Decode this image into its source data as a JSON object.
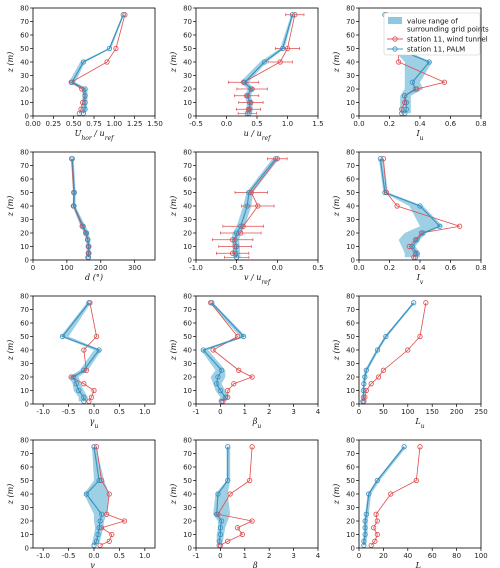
{
  "colors": {
    "palm": "#3a8fbf",
    "wind_tunnel": "#e04b4b",
    "band": "#8cc8df",
    "axis": "#000000"
  },
  "legend": {
    "entries": [
      {
        "kind": "band",
        "label_lines": [
          "value range of",
          "surrounding grid points"
        ]
      },
      {
        "kind": "wind_tunnel",
        "label_lines": [
          "station 11, wind tunnel"
        ]
      },
      {
        "kind": "palm",
        "label_lines": [
          "station 11, PALM"
        ]
      }
    ]
  },
  "chart_data": [
    {
      "type": "line",
      "xlabel": "U_hor / u_ref",
      "ylabel": "z (m)",
      "xlim": [
        0,
        1.5
      ],
      "ylim": [
        0,
        80
      ],
      "xticks": [
        0,
        0.25,
        0.5,
        0.75,
        1.0,
        1.25,
        1.5
      ],
      "xtick_labels": [
        "0.00",
        "0.25",
        "0.50",
        "0.75",
        "1.00",
        "1.25",
        "1.50"
      ],
      "yticks": [
        0,
        10,
        20,
        30,
        40,
        50,
        60,
        70,
        80
      ],
      "z": [
        75,
        50,
        40,
        25,
        20,
        15,
        10,
        5,
        2
      ],
      "palm": [
        1.11,
        0.94,
        0.62,
        0.48,
        0.64,
        0.64,
        0.64,
        0.64,
        0.62
      ],
      "wind_tunnel": [
        1.13,
        1.02,
        0.91,
        0.47,
        0.6,
        0.64,
        0.61,
        0.59,
        0.57
      ],
      "band_min": [
        1.1,
        0.93,
        0.58,
        0.44,
        0.6,
        0.61,
        0.6,
        0.59,
        0.57
      ],
      "band_max": [
        1.12,
        0.96,
        0.64,
        0.52,
        0.67,
        0.67,
        0.67,
        0.66,
        0.64
      ]
    },
    {
      "type": "line",
      "xlabel": "u / u_ref",
      "ylabel": "z (m)",
      "xlim": [
        -0.5,
        1.5
      ],
      "ylim": [
        0,
        80
      ],
      "xticks": [
        -0.5,
        0.0,
        0.5,
        1.0,
        1.5
      ],
      "xtick_labels": [
        "-0.5",
        "0.0",
        "0.5",
        "1.0",
        "1.5"
      ],
      "yticks": [
        0,
        10,
        20,
        30,
        40,
        50,
        60,
        70,
        80
      ],
      "z": [
        75,
        50,
        40,
        25,
        20,
        15,
        10,
        5,
        2
      ],
      "palm": [
        1.08,
        0.92,
        0.62,
        0.3,
        0.4,
        0.35,
        0.38,
        0.38,
        0.37
      ],
      "wind_tunnel": [
        1.12,
        1.0,
        0.88,
        0.28,
        0.42,
        0.33,
        0.4,
        0.36,
        0.34
      ],
      "wind_tunnel_err": [
        0.15,
        0.2,
        0.2,
        0.25,
        0.25,
        0.2,
        0.2,
        0.2,
        0.15
      ],
      "band_min": [
        1.06,
        0.88,
        0.55,
        0.22,
        0.35,
        0.3,
        0.33,
        0.33,
        0.32
      ],
      "band_max": [
        1.1,
        0.95,
        0.66,
        0.36,
        0.45,
        0.4,
        0.43,
        0.43,
        0.42
      ]
    },
    {
      "type": "line",
      "xlabel": "I_u",
      "ylabel": "z (m)",
      "xlim": [
        0,
        0.8
      ],
      "ylim": [
        0,
        80
      ],
      "xticks": [
        0,
        0.2,
        0.4,
        0.6,
        0.8
      ],
      "xtick_labels": [
        "0.0",
        "0.2",
        "0.4",
        "0.6",
        "0.8"
      ],
      "yticks": [
        0,
        10,
        20,
        30,
        40,
        50,
        60,
        70,
        80
      ],
      "z": [
        75,
        50,
        40,
        25,
        20,
        15,
        10,
        5,
        2
      ],
      "palm": [
        0.17,
        0.24,
        0.46,
        0.35,
        0.37,
        0.3,
        0.31,
        0.31,
        0.3
      ],
      "wind_tunnel": [
        0.18,
        0.26,
        0.26,
        0.56,
        0.38,
        0.3,
        0.3,
        0.28,
        0.28
      ],
      "band_min": [
        0.16,
        0.22,
        0.3,
        0.3,
        0.3,
        0.27,
        0.27,
        0.27,
        0.27
      ],
      "band_max": [
        0.2,
        0.27,
        0.48,
        0.4,
        0.42,
        0.34,
        0.34,
        0.34,
        0.34
      ]
    },
    {
      "type": "line",
      "xlabel": "d (°)",
      "ylabel": "z (m)",
      "xlim": [
        0,
        360
      ],
      "ylim": [
        0,
        80
      ],
      "xticks": [
        0,
        100,
        200,
        300
      ],
      "xtick_labels": [
        "0",
        "100",
        "200",
        "300"
      ],
      "yticks": [
        0,
        10,
        20,
        30,
        40,
        50,
        60,
        70,
        80
      ],
      "z": [
        75,
        50,
        40,
        25,
        20,
        15,
        10,
        5,
        2
      ],
      "palm": [
        116,
        122,
        121,
        148,
        158,
        162,
        165,
        165,
        164
      ],
      "wind_tunnel": [
        114,
        120,
        119,
        145,
        155,
        161,
        163,
        163,
        162
      ],
      "band_min": [
        112,
        118,
        117,
        140,
        150,
        156,
        158,
        158,
        158
      ],
      "band_max": [
        120,
        126,
        125,
        155,
        165,
        168,
        170,
        170,
        170
      ]
    },
    {
      "type": "line",
      "xlabel": "v / u_ref",
      "ylabel": "z (m)",
      "xlim": [
        -1.0,
        0.5
      ],
      "ylim": [
        0,
        80
      ],
      "xticks": [
        -1.0,
        -0.5,
        0.0,
        0.5
      ],
      "xtick_labels": [
        "-1.0",
        "-0.5",
        "0.0",
        "0.5"
      ],
      "yticks": [
        0,
        10,
        20,
        30,
        40,
        50,
        60,
        70,
        80
      ],
      "z": [
        75,
        50,
        40,
        25,
        20,
        15,
        10,
        5,
        2
      ],
      "palm": [
        -0.02,
        -0.35,
        -0.37,
        -0.45,
        -0.5,
        -0.52,
        -0.5,
        -0.51,
        -0.5
      ],
      "wind_tunnel": [
        0.0,
        -0.32,
        -0.24,
        -0.42,
        -0.45,
        -0.55,
        -0.52,
        -0.55,
        -0.5
      ],
      "wind_tunnel_err": [
        0.12,
        0.2,
        0.2,
        0.25,
        0.25,
        0.25,
        0.2,
        0.2,
        0.15
      ],
      "band_min": [
        -0.06,
        -0.38,
        -0.42,
        -0.5,
        -0.55,
        -0.56,
        -0.55,
        -0.55,
        -0.54
      ],
      "band_max": [
        0.02,
        -0.3,
        -0.32,
        -0.4,
        -0.45,
        -0.47,
        -0.46,
        -0.46,
        -0.45
      ]
    },
    {
      "type": "line",
      "xlabel": "I_v",
      "ylabel": "z (m)",
      "xlim": [
        0,
        0.8
      ],
      "ylim": [
        0,
        80
      ],
      "xticks": [
        0,
        0.2,
        0.4,
        0.6,
        0.8
      ],
      "xtick_labels": [
        "0.0",
        "0.2",
        "0.4",
        "0.6",
        "0.8"
      ],
      "yticks": [
        0,
        10,
        20,
        30,
        40,
        50,
        60,
        70,
        80
      ],
      "z": [
        75,
        50,
        40,
        25,
        20,
        15,
        10,
        5,
        2
      ],
      "palm": [
        0.14,
        0.17,
        0.4,
        0.53,
        0.42,
        0.38,
        0.35,
        0.38,
        0.37
      ],
      "wind_tunnel": [
        0.16,
        0.18,
        0.25,
        0.66,
        0.41,
        0.37,
        0.33,
        0.37,
        0.36
      ],
      "band_min": [
        0.13,
        0.16,
        0.33,
        0.4,
        0.3,
        0.26,
        0.28,
        0.3,
        0.3
      ],
      "band_max": [
        0.16,
        0.19,
        0.42,
        0.55,
        0.44,
        0.4,
        0.37,
        0.4,
        0.4
      ]
    },
    {
      "type": "line",
      "xlabel": "γ_u",
      "ylabel": "z (m)",
      "xlim": [
        -1.2,
        1.2
      ],
      "ylim": [
        0,
        80
      ],
      "xticks": [
        -1.0,
        -0.5,
        0.0,
        0.5,
        1.0
      ],
      "xtick_labels": [
        "-1.0",
        "-0.5",
        "0.0",
        "0.5",
        "1.0"
      ],
      "yticks": [
        0,
        10,
        20,
        30,
        40,
        50,
        60,
        70,
        80
      ],
      "z": [
        75,
        50,
        40,
        25,
        20,
        15,
        10,
        5,
        2
      ],
      "palm": [
        -0.1,
        -0.62,
        0.1,
        -0.2,
        -0.4,
        -0.35,
        -0.3,
        -0.2,
        -0.2
      ],
      "wind_tunnel": [
        -0.08,
        0.05,
        -0.2,
        -0.15,
        -0.45,
        -0.2,
        0.0,
        -0.05,
        -0.1
      ],
      "band_min": [
        -0.14,
        -0.66,
        0.0,
        -0.28,
        -0.5,
        -0.42,
        -0.4,
        -0.3,
        -0.3
      ],
      "band_max": [
        -0.06,
        -0.5,
        0.15,
        -0.12,
        -0.3,
        -0.26,
        -0.2,
        -0.12,
        -0.12
      ]
    },
    {
      "type": "line",
      "xlabel": "β_u",
      "ylabel": "z (m)",
      "xlim": [
        -1,
        4
      ],
      "ylim": [
        0,
        80
      ],
      "xticks": [
        -1,
        0,
        1,
        2,
        3,
        4
      ],
      "xtick_labels": [
        "-1",
        "0",
        "1",
        "2",
        "3",
        "4"
      ],
      "yticks": [
        0,
        10,
        20,
        30,
        40,
        50,
        60,
        70,
        80
      ],
      "z": [
        75,
        50,
        40,
        25,
        20,
        15,
        10,
        5,
        2
      ],
      "palm": [
        -0.35,
        0.95,
        -0.7,
        0.05,
        -0.1,
        -0.15,
        0.0,
        0.2,
        0.05
      ],
      "wind_tunnel": [
        -0.4,
        0.7,
        -0.3,
        0.75,
        1.3,
        0.55,
        0.3,
        0.3,
        0.1
      ],
      "band_min": [
        -0.45,
        0.8,
        -0.8,
        -0.2,
        -0.4,
        -0.3,
        -0.2,
        0.0,
        -0.1
      ],
      "band_max": [
        -0.3,
        1.05,
        -0.5,
        0.2,
        0.2,
        0.05,
        0.2,
        0.35,
        0.25
      ]
    },
    {
      "type": "line",
      "xlabel": "L_u",
      "ylabel": "z (m)",
      "xlim": [
        0,
        250
      ],
      "ylim": [
        0,
        80
      ],
      "xticks": [
        0,
        50,
        100,
        150,
        200,
        250
      ],
      "xtick_labels": [
        "0",
        "50",
        "100",
        "150",
        "200",
        "250"
      ],
      "yticks": [
        0,
        10,
        20,
        30,
        40,
        50,
        60,
        70,
        80
      ],
      "z": [
        75,
        50,
        40,
        25,
        20,
        15,
        10,
        5,
        2
      ],
      "palm": [
        112,
        55,
        38,
        15,
        12,
        10,
        9,
        9,
        8
      ],
      "wind_tunnel": [
        137,
        125,
        100,
        50,
        40,
        25,
        15,
        12,
        10
      ],
      "band_min": [
        110,
        52,
        35,
        12,
        9,
        8,
        7,
        7,
        6
      ],
      "band_max": [
        115,
        58,
        41,
        18,
        15,
        13,
        12,
        12,
        11
      ]
    },
    {
      "type": "line",
      "xlabel": "γ_v",
      "ylabel": "z (m)",
      "xlim": [
        -1.2,
        1.2
      ],
      "ylim": [
        0,
        80
      ],
      "xticks": [
        -1.0,
        -0.5,
        0.0,
        0.5,
        1.0
      ],
      "xtick_labels": [
        "-1.0",
        "-0.5",
        "0.0",
        "0.5",
        "1.0"
      ],
      "yticks": [
        0,
        10,
        20,
        30,
        40,
        50,
        60,
        70,
        80
      ],
      "z": [
        75,
        50,
        40,
        25,
        20,
        15,
        10,
        5,
        2
      ],
      "palm": [
        0.0,
        0.1,
        -0.15,
        0.15,
        0.12,
        0.1,
        0.08,
        0.05,
        0.0
      ],
      "wind_tunnel": [
        0.05,
        0.15,
        0.3,
        0.25,
        0.6,
        0.15,
        0.35,
        0.3,
        0.12
      ],
      "band_min": [
        -0.04,
        0.0,
        -0.2,
        0.0,
        0.0,
        0.02,
        0.0,
        -0.03,
        -0.05
      ],
      "band_max": [
        0.04,
        0.2,
        0.3,
        0.25,
        0.2,
        0.18,
        0.15,
        0.12,
        0.05
      ]
    },
    {
      "type": "line",
      "xlabel": "β_v",
      "ylabel": "z (m)",
      "xlim": [
        -1,
        4
      ],
      "ylim": [
        0,
        80
      ],
      "xticks": [
        -1,
        0,
        1,
        2,
        3,
        4
      ],
      "xtick_labels": [
        "-1",
        "0",
        "1",
        "2",
        "3",
        "4"
      ],
      "yticks": [
        0,
        10,
        20,
        30,
        40,
        50,
        60,
        70,
        80
      ],
      "z": [
        75,
        50,
        40,
        25,
        20,
        15,
        10,
        5,
        2
      ],
      "palm": [
        0.3,
        0.3,
        -0.1,
        -0.15,
        0.05,
        0.0,
        0.0,
        -0.05,
        -0.05
      ],
      "wind_tunnel": [
        1.3,
        1.2,
        0.4,
        -0.1,
        1.3,
        0.7,
        0.9,
        0.3,
        0.0
      ],
      "band_min": [
        0.25,
        0.25,
        -0.2,
        -0.3,
        -0.1,
        -0.1,
        -0.15,
        -0.15,
        -0.1
      ],
      "band_max": [
        0.4,
        0.4,
        0.3,
        0.4,
        0.3,
        0.2,
        0.15,
        0.1,
        0.05
      ]
    },
    {
      "type": "line",
      "xlabel": "L_v",
      "ylabel": "z (m)",
      "xlim": [
        0,
        100
      ],
      "ylim": [
        0,
        80
      ],
      "xticks": [
        0,
        20,
        40,
        60,
        80,
        100
      ],
      "xtick_labels": [
        "0",
        "20",
        "40",
        "60",
        "80",
        "100"
      ],
      "yticks": [
        0,
        10,
        20,
        30,
        40,
        50,
        60,
        70,
        80
      ],
      "z": [
        75,
        50,
        40,
        25,
        20,
        15,
        10,
        5,
        2
      ],
      "palm": [
        37,
        15,
        8,
        6,
        5,
        5,
        5,
        4,
        4
      ],
      "wind_tunnel": [
        50,
        47,
        26,
        14,
        15,
        12,
        15,
        13,
        10
      ],
      "band_min": [
        36,
        14,
        7,
        5,
        4,
        4,
        4,
        3,
        3
      ],
      "band_max": [
        39,
        17,
        10,
        8,
        7,
        7,
        7,
        6,
        6
      ]
    }
  ]
}
